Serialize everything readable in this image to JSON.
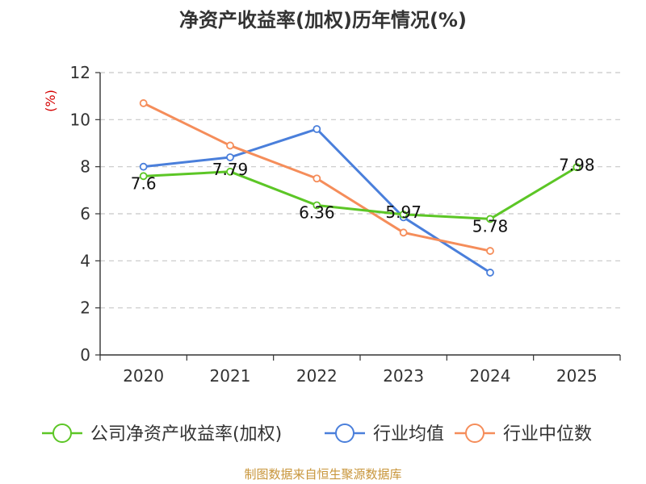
{
  "chart_data": {
    "type": "line",
    "title": "净资产收益率(加权)历年情况(%)",
    "ylabel": "(%)",
    "xlabel": "",
    "categories": [
      "2020",
      "2021",
      "2022",
      "2023",
      "2024",
      "2025"
    ],
    "ylim": [
      0,
      12
    ],
    "yticks": [
      0,
      2,
      4,
      6,
      8,
      10,
      12
    ],
    "grid": true,
    "legend_position": "bottom",
    "series": [
      {
        "name": "公司净资产收益率(加权)",
        "color": "#5cc626",
        "values": [
          7.6,
          7.79,
          6.36,
          5.97,
          5.78,
          7.98
        ],
        "labels": [
          "7.6",
          "7.79",
          "6.36",
          "5.97",
          "5.78",
          "7.98"
        ]
      },
      {
        "name": "行业均值",
        "color": "#4a7fdb",
        "values": [
          8.0,
          8.4,
          9.6,
          5.85,
          3.5,
          null
        ]
      },
      {
        "name": "行业中位数",
        "color": "#f58d5a",
        "values": [
          10.7,
          8.9,
          7.5,
          5.2,
          4.42,
          null
        ]
      }
    ],
    "source": "制图数据来自恒生聚源数据库"
  }
}
